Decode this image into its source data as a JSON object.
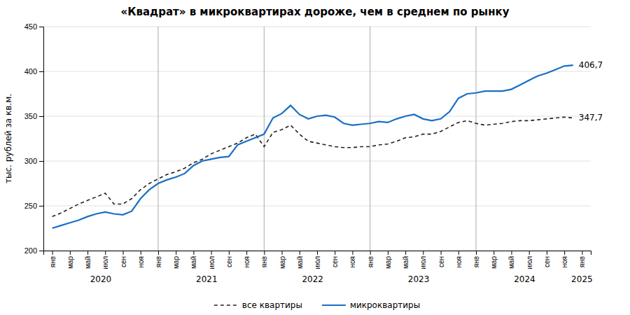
{
  "chart_data": {
    "type": "line",
    "title": "«Квадрат» в микроквартирах дороже, чем в среднем по рынку",
    "y_label": "тыс. рублей за кв.м.",
    "categories": [
      "янв",
      null,
      "мар",
      null,
      "май",
      null,
      "июл",
      null,
      "сен",
      null,
      "ноя",
      null,
      "янв",
      null,
      "мар",
      null,
      "май",
      null,
      "июл",
      null,
      "сен",
      null,
      "ноя",
      null,
      "янв",
      null,
      "мар",
      null,
      "май",
      null,
      "июл",
      null,
      "сен",
      null,
      "ноя",
      null,
      "янв",
      null,
      "мар",
      null,
      "май",
      null,
      "июл",
      null,
      "сен",
      null,
      "ноя",
      null,
      "янв",
      null,
      "мар",
      null,
      "май",
      null,
      "июл",
      null,
      "сен",
      null,
      "ноя",
      null,
      "янв"
    ],
    "group_labels": [
      "2020",
      "2021",
      "2022",
      "2023",
      "2024",
      "2025"
    ],
    "series": [
      {
        "name": "все квартиры",
        "color": "#222222",
        "line_style": "dashed",
        "values": [
          238,
          242,
          247,
          252,
          256,
          260,
          264,
          252,
          252,
          258,
          268,
          275,
          280,
          285,
          288,
          292,
          298,
          302,
          308,
          312,
          316,
          320,
          326,
          330,
          316,
          332,
          335,
          340,
          330,
          322,
          320,
          318,
          316,
          315,
          315,
          316,
          316,
          318,
          319,
          322,
          326,
          327,
          330,
          330,
          333,
          338,
          343,
          345,
          342,
          340,
          341,
          342,
          344,
          345,
          345,
          346,
          347,
          348,
          349,
          348,
          null
        ]
      },
      {
        "name": "микроквартиры",
        "color": "#1a6fc4",
        "line_style": "solid",
        "values": [
          225,
          228,
          231,
          234,
          238,
          241,
          243,
          241,
          240,
          244,
          258,
          268,
          275,
          279,
          282,
          286,
          295,
          300,
          302,
          304,
          305,
          318,
          322,
          326,
          330,
          348,
          353,
          362,
          352,
          347,
          350,
          351,
          349,
          342,
          340,
          341,
          342,
          344,
          343,
          347,
          350,
          352,
          347,
          345,
          347,
          355,
          370,
          375,
          376,
          378,
          378,
          378,
          380,
          385,
          390,
          395,
          398,
          402,
          406,
          407,
          null
        ]
      }
    ],
    "annotations": [
      {
        "text": "406,7",
        "series": "микроквартиры"
      },
      {
        "text": "347,7",
        "series": "все квартиры"
      }
    ],
    "ylim": [
      200,
      450
    ],
    "yticks": [
      200,
      250,
      300,
      350,
      400,
      450
    ],
    "grid": true,
    "legend": "bottom"
  }
}
